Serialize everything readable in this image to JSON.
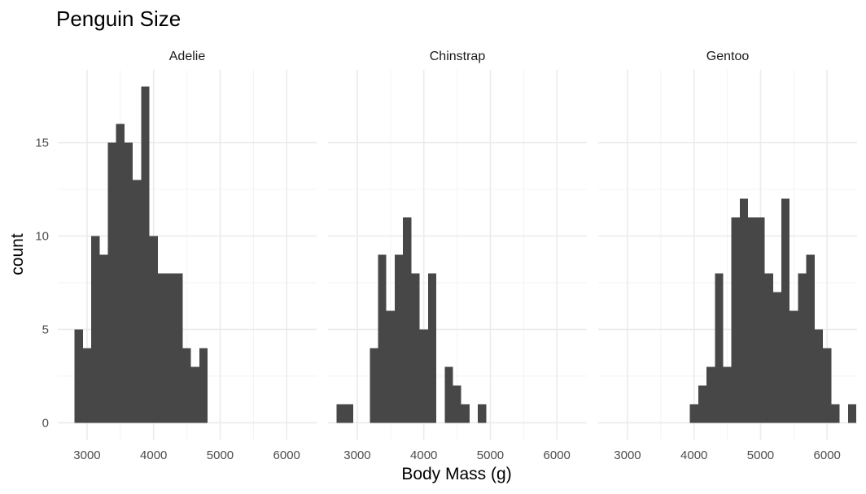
{
  "chart_data": {
    "type": "histogram",
    "title": "Penguin Size",
    "xlabel": "Body Mass (g)",
    "ylabel": "count",
    "xlim": [
      2560,
      6450
    ],
    "ylim": [
      -0.9,
      18.9
    ],
    "x_ticks": [
      3000,
      4000,
      5000,
      6000
    ],
    "y_ticks": [
      0,
      5,
      10,
      15
    ],
    "bin_width": 125,
    "bar_color": "#474747",
    "grid": true,
    "facets": [
      {
        "name": "Adelie",
        "bins": [
          {
            "start": 2812.5,
            "count": 5
          },
          {
            "start": 2937.5,
            "count": 4
          },
          {
            "start": 3062.5,
            "count": 10
          },
          {
            "start": 3187.5,
            "count": 9
          },
          {
            "start": 3312.5,
            "count": 15
          },
          {
            "start": 3437.5,
            "count": 16
          },
          {
            "start": 3562.5,
            "count": 15
          },
          {
            "start": 3687.5,
            "count": 13
          },
          {
            "start": 3812.5,
            "count": 18
          },
          {
            "start": 3937.5,
            "count": 10
          },
          {
            "start": 4062.5,
            "count": 8
          },
          {
            "start": 4187.5,
            "count": 8
          },
          {
            "start": 4312.5,
            "count": 8
          },
          {
            "start": 4437.5,
            "count": 4
          },
          {
            "start": 4562.5,
            "count": 3
          },
          {
            "start": 4687.5,
            "count": 4
          }
        ]
      },
      {
        "name": "Chinstrap",
        "bins": [
          {
            "start": 2687.5,
            "count": 1
          },
          {
            "start": 2812.5,
            "count": 1
          },
          {
            "start": 3187.5,
            "count": 4
          },
          {
            "start": 3312.5,
            "count": 9
          },
          {
            "start": 3437.5,
            "count": 6
          },
          {
            "start": 3562.5,
            "count": 9
          },
          {
            "start": 3687.5,
            "count": 11
          },
          {
            "start": 3812.5,
            "count": 8
          },
          {
            "start": 3937.5,
            "count": 5
          },
          {
            "start": 4062.5,
            "count": 8
          },
          {
            "start": 4312.5,
            "count": 3
          },
          {
            "start": 4437.5,
            "count": 2
          },
          {
            "start": 4562.5,
            "count": 1
          },
          {
            "start": 4812.5,
            "count": 1
          }
        ]
      },
      {
        "name": "Gentoo",
        "bins": [
          {
            "start": 3937.5,
            "count": 1
          },
          {
            "start": 4062.5,
            "count": 2
          },
          {
            "start": 4187.5,
            "count": 3
          },
          {
            "start": 4312.5,
            "count": 8
          },
          {
            "start": 4437.5,
            "count": 3
          },
          {
            "start": 4562.5,
            "count": 11
          },
          {
            "start": 4687.5,
            "count": 12
          },
          {
            "start": 4812.5,
            "count": 11
          },
          {
            "start": 4937.5,
            "count": 11
          },
          {
            "start": 5062.5,
            "count": 8
          },
          {
            "start": 5187.5,
            "count": 7
          },
          {
            "start": 5312.5,
            "count": 12
          },
          {
            "start": 5437.5,
            "count": 6
          },
          {
            "start": 5562.5,
            "count": 8
          },
          {
            "start": 5687.5,
            "count": 9
          },
          {
            "start": 5812.5,
            "count": 5
          },
          {
            "start": 5937.5,
            "count": 4
          },
          {
            "start": 6062.5,
            "count": 1
          },
          {
            "start": 6312.5,
            "count": 1
          }
        ]
      }
    ]
  }
}
